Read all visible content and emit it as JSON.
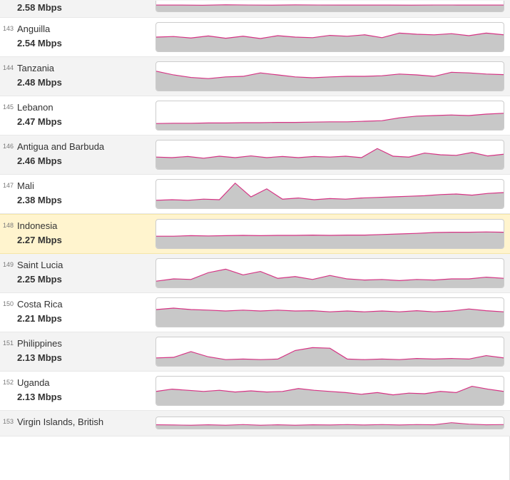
{
  "chart_style": {
    "stroke_color": "#d63384",
    "fill_color": "#c8c8c8",
    "stroke_width": 1.2,
    "background": "#ffffff",
    "border_color": "#cccccc"
  },
  "row_colors": {
    "default": "#ffffff",
    "alt": "#f3f3f3",
    "highlight": "#fff4ce"
  },
  "rows": [
    {
      "rank": "",
      "country": "",
      "speed": "2.58 Mbps",
      "partial": true,
      "bg": "alt",
      "series": [
        60,
        60,
        58,
        62,
        60,
        59,
        61,
        60,
        60,
        60,
        60,
        59,
        60,
        60,
        60,
        60
      ]
    },
    {
      "rank": "143",
      "country": "Anguilla",
      "speed": "2.54 Mbps",
      "bg": "default",
      "series": [
        50,
        52,
        47,
        54,
        46,
        53,
        45,
        55,
        50,
        48,
        56,
        53,
        58,
        48,
        64,
        60,
        58,
        62,
        55,
        64,
        58
      ]
    },
    {
      "rank": "144",
      "country": "Tanzania",
      "speed": "2.48 Mbps",
      "bg": "alt",
      "series": [
        68,
        55,
        46,
        42,
        48,
        50,
        62,
        55,
        48,
        45,
        48,
        50,
        50,
        52,
        58,
        55,
        50,
        64,
        62,
        58,
        56
      ]
    },
    {
      "rank": "145",
      "country": "Lebanon",
      "speed": "2.47 Mbps",
      "bg": "default",
      "series": [
        22,
        23,
        23,
        24,
        24,
        25,
        25,
        26,
        26,
        27,
        28,
        28,
        30,
        32,
        42,
        48,
        50,
        52,
        50,
        55,
        58
      ]
    },
    {
      "rank": "146",
      "country": "Antigua and Barbuda",
      "speed": "2.46 Mbps",
      "bg": "alt",
      "series": [
        42,
        40,
        44,
        38,
        45,
        40,
        46,
        40,
        44,
        40,
        44,
        42,
        45,
        40,
        72,
        45,
        42,
        56,
        50,
        48,
        58,
        46,
        52
      ]
    },
    {
      "rank": "147",
      "country": "Mali",
      "speed": "2.38 Mbps",
      "bg": "default",
      "series": [
        28,
        30,
        28,
        32,
        30,
        88,
        40,
        68,
        32,
        36,
        30,
        34,
        32,
        36,
        38,
        40,
        42,
        44,
        48,
        50,
        46,
        52,
        55
      ]
    },
    {
      "rank": "148",
      "country": "Indonesia",
      "speed": "2.27 Mbps",
      "bg": "highlight",
      "series": [
        42,
        42,
        44,
        43,
        44,
        45,
        44,
        45,
        45,
        46,
        45,
        46,
        46,
        48,
        50,
        52,
        55,
        56,
        56,
        57,
        56
      ]
    },
    {
      "rank": "149",
      "country": "Saint Lucia",
      "speed": "2.25 Mbps",
      "bg": "alt",
      "series": [
        22,
        30,
        28,
        52,
        64,
        44,
        56,
        32,
        38,
        28,
        42,
        30,
        26,
        28,
        24,
        28,
        26,
        30,
        30,
        36,
        32
      ]
    },
    {
      "rank": "150",
      "country": "Costa Rica",
      "speed": "2.21 Mbps",
      "bg": "default",
      "series": [
        60,
        65,
        60,
        58,
        55,
        58,
        55,
        58,
        55,
        56,
        52,
        55,
        52,
        55,
        52,
        56,
        52,
        55,
        62,
        56,
        52
      ]
    },
    {
      "rank": "151",
      "country": "Philippines",
      "speed": "2.13 Mbps",
      "bg": "alt",
      "series": [
        28,
        30,
        50,
        32,
        22,
        24,
        22,
        24,
        54,
        64,
        62,
        24,
        22,
        24,
        22,
        26,
        24,
        26,
        24,
        36,
        28
      ]
    },
    {
      "rank": "152",
      "country": "Uganda",
      "speed": "2.13 Mbps",
      "bg": "default",
      "series": [
        48,
        56,
        52,
        48,
        52,
        46,
        50,
        46,
        48,
        58,
        52,
        48,
        44,
        38,
        44,
        36,
        42,
        40,
        48,
        44,
        66,
        56,
        48
      ]
    },
    {
      "rank": "153",
      "country": "Virgin Islands, British",
      "speed": "",
      "bg": "alt",
      "partial_bottom": true,
      "series": [
        34,
        32,
        30,
        34,
        30,
        36,
        30,
        34,
        30,
        34,
        32,
        36,
        32,
        36,
        32,
        36,
        34,
        52,
        40,
        34,
        36
      ]
    }
  ]
}
